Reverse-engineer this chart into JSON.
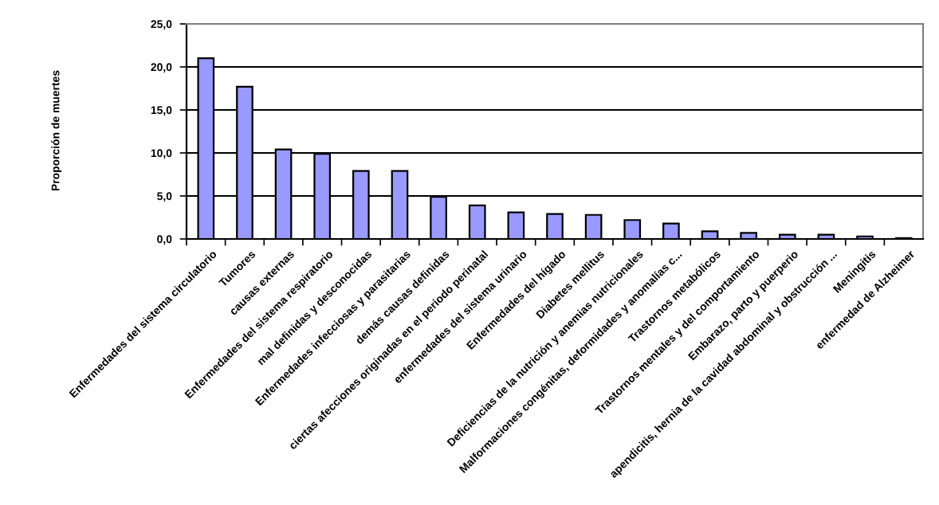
{
  "chart_data": {
    "type": "bar",
    "ylabel": "Proporción de muertes",
    "categories": [
      "Enfermedades del sistema circulatorio",
      "Tumores",
      "causas externas",
      "Enfermedades del sistema respiratorio",
      "mal definidas y desconocidas",
      "Enfermedades infecciosas y parasitarias",
      "demás causas definidas",
      "ciertas afecciones originadas en el periodo perinatal",
      "enfermedades del sistema urinario",
      "Enfermedades del hígado",
      "Diabetes mellitus",
      "Deficiencias de la nutrición y anemias nutricionales",
      "Malformaciones congénitas, deformidades y anomalías c...",
      "Trastornos metabólicos",
      "Trastornos mentales y del comportamiento",
      "Embarazo, parto y puerperio",
      "apendicitis, hernia de la cavidad abdominal y obstrucción ...",
      "Meningitis",
      "enfermedad de Alzheimer"
    ],
    "values": [
      21.0,
      17.7,
      10.4,
      9.9,
      7.9,
      7.9,
      4.9,
      3.9,
      3.1,
      2.9,
      2.8,
      2.2,
      1.8,
      0.9,
      0.7,
      0.5,
      0.5,
      0.3,
      0.1
    ],
    "color": "#9999ff",
    "ylim": [
      0,
      25
    ],
    "yticks": [
      {
        "value": 0,
        "label": "0,0"
      },
      {
        "value": 5,
        "label": "5,0"
      },
      {
        "value": 10,
        "label": "10,0"
      },
      {
        "value": 15,
        "label": "15,0"
      },
      {
        "value": 20,
        "label": "20,0"
      },
      {
        "value": 25,
        "label": "25,0"
      }
    ],
    "grid": "y"
  }
}
